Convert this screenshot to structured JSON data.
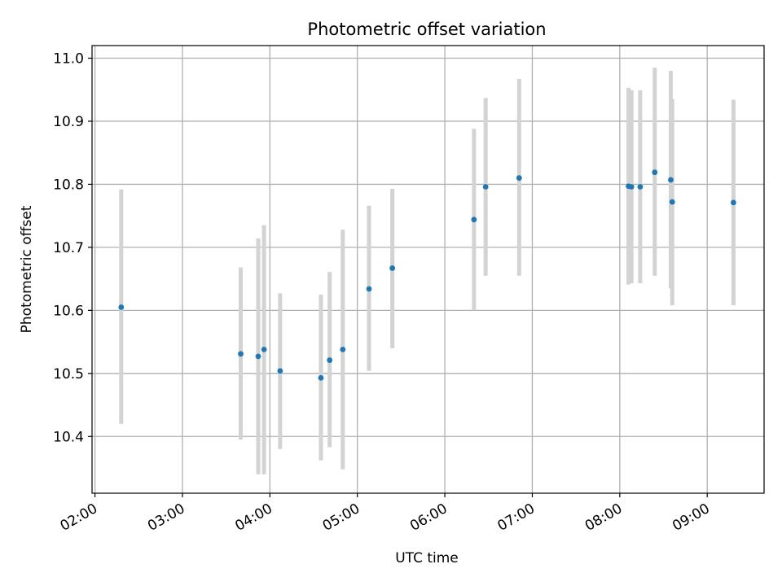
{
  "chart_data": {
    "type": "scatter",
    "title": "Photometric offset variation",
    "xlabel": "UTC time",
    "ylabel": "Photometric offset",
    "x_axis_kind": "time",
    "xlim": [
      "01:58",
      "09:39"
    ],
    "ylim": [
      10.31,
      11.02
    ],
    "xticks": [
      "02:00",
      "03:00",
      "04:00",
      "05:00",
      "06:00",
      "07:00",
      "08:00",
      "09:00"
    ],
    "yticks": [
      "10.4",
      "10.5",
      "10.6",
      "10.7",
      "10.8",
      "10.9",
      "11.0"
    ],
    "grid": true,
    "colors": {
      "points": "#1f77b4",
      "error_bars": "#d3d3d3",
      "grid": "#b0b0b0"
    },
    "series": [
      {
        "points": [
          {
            "x": "02:18",
            "y": 10.605,
            "err_low": 10.42,
            "err_high": 10.792
          },
          {
            "x": "03:40",
            "y": 10.531,
            "err_low": 10.395,
            "err_high": 10.668
          },
          {
            "x": "03:52",
            "y": 10.527,
            "err_low": 10.34,
            "err_high": 10.714
          },
          {
            "x": "03:56",
            "y": 10.538,
            "err_low": 10.34,
            "err_high": 10.735
          },
          {
            "x": "04:07",
            "y": 10.504,
            "err_low": 10.38,
            "err_high": 10.627
          },
          {
            "x": "04:35",
            "y": 10.493,
            "err_low": 10.362,
            "err_high": 10.625
          },
          {
            "x": "04:41",
            "y": 10.521,
            "err_low": 10.383,
            "err_high": 10.661
          },
          {
            "x": "04:50",
            "y": 10.538,
            "err_low": 10.348,
            "err_high": 10.728
          },
          {
            "x": "05:08",
            "y": 10.634,
            "err_low": 10.504,
            "err_high": 10.766
          },
          {
            "x": "05:24",
            "y": 10.667,
            "err_low": 10.54,
            "err_high": 10.793
          },
          {
            "x": "06:20",
            "y": 10.744,
            "err_low": 10.6,
            "err_high": 10.888
          },
          {
            "x": "06:28",
            "y": 10.796,
            "err_low": 10.655,
            "err_high": 10.937
          },
          {
            "x": "06:51",
            "y": 10.81,
            "err_low": 10.655,
            "err_high": 10.967
          },
          {
            "x": "08:06",
            "y": 10.797,
            "err_low": 10.641,
            "err_high": 10.953
          },
          {
            "x": "08:08",
            "y": 10.796,
            "err_low": 10.643,
            "err_high": 10.949
          },
          {
            "x": "08:14",
            "y": 10.796,
            "err_low": 10.643,
            "err_high": 10.949
          },
          {
            "x": "08:24",
            "y": 10.819,
            "err_low": 10.655,
            "err_high": 10.985
          },
          {
            "x": "08:35",
            "y": 10.807,
            "err_low": 10.635,
            "err_high": 10.98
          },
          {
            "x": "08:36",
            "y": 10.772,
            "err_low": 10.608,
            "err_high": 10.935
          },
          {
            "x": "09:18",
            "y": 10.771,
            "err_low": 10.608,
            "err_high": 10.934
          }
        ]
      }
    ]
  }
}
